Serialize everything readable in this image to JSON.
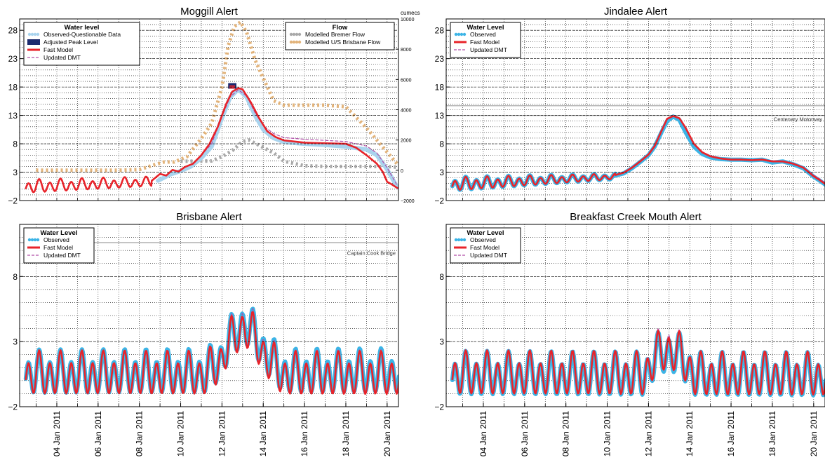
{
  "x_ticks": [
    "04 Jan 2011",
    "06 Jan 2011",
    "08 Jan 2011",
    "10 Jan 2011",
    "12 Jan 2011",
    "14 Jan 2011",
    "16 Jan 2011",
    "18 Jan 2011",
    "20 Jan 2011"
  ],
  "colors": {
    "observed": "#3cb4e6",
    "observed_questionable": "#a9d4ee",
    "fast_model": "#e8232a",
    "updated_dmt": "#b04ea8",
    "peak": "#1c2a6e",
    "bremer": "#a8a8a8",
    "brisbane_flow": "#e2b37a"
  },
  "chart_data": [
    {
      "id": "moggill",
      "type": "line",
      "title": "Moggill Alert",
      "y_ticks": [
        -2,
        3,
        8,
        13,
        18,
        23,
        28
      ],
      "ylim": [
        -2,
        30
      ],
      "y2_label": "cumecs",
      "y2_ticks": [
        -2000,
        0,
        2000,
        4000,
        6000,
        8000,
        10000
      ],
      "y2lim": [
        -2000,
        10000
      ],
      "grid": true,
      "legends": [
        {
          "title": "Water level",
          "position": "top-left",
          "items": [
            {
              "label": "Observed-Questionable Data",
              "style": "dots",
              "color_key": "observed_questionable"
            },
            {
              "label": "Adjusted Peak Level",
              "style": "bar",
              "color_key": "peak"
            },
            {
              "label": "Fast Model",
              "style": "solid",
              "color_key": "fast_model"
            },
            {
              "label": "Updated DMT",
              "style": "dashed",
              "color_key": "updated_dmt"
            }
          ]
        },
        {
          "title": "Flow",
          "position": "top-right",
          "items": [
            {
              "label": "Modelled Bremer Flow",
              "style": "dots",
              "color_key": "bremer"
            },
            {
              "label": "Modelled U/S Brisbane Flow",
              "style": "dots",
              "color_key": "brisbane_flow"
            }
          ]
        }
      ],
      "peak": {
        "x": [
          12.3,
          12.7
        ],
        "y": 18.2
      },
      "series": [
        {
          "name": "Modelled U/S Brisbane Flow",
          "axis": "right",
          "color_key": "brisbane_flow",
          "style": "dots",
          "x": [
            3,
            4,
            5,
            6,
            7,
            8,
            8.7,
            9.2,
            9.7,
            10.3,
            11,
            11.5,
            12,
            12.3,
            12.6,
            12.9,
            13.2,
            13.6,
            14,
            14.5,
            15,
            16,
            17,
            18,
            19,
            20,
            20.5
          ],
          "y": [
            0,
            0,
            0,
            0,
            0,
            50,
            350,
            550,
            550,
            900,
            2100,
            3100,
            5500,
            8200,
            9500,
            9800,
            9100,
            7300,
            6100,
            4600,
            4300,
            4300,
            4300,
            4200,
            2800,
            1200,
            400
          ]
        },
        {
          "name": "Modelled Bremer Flow",
          "axis": "right",
          "color_key": "bremer",
          "style": "dots",
          "x": [
            10,
            10.8,
            11.5,
            12,
            12.5,
            13,
            13.3,
            13.8,
            14.5,
            15,
            16,
            17,
            18,
            19,
            20,
            20.5
          ],
          "y": [
            600,
            600,
            620,
            900,
            1300,
            1900,
            2000,
            1650,
            1150,
            600,
            300,
            250,
            250,
            250,
            250,
            200
          ]
        },
        {
          "name": "Observed-Questionable Data",
          "axis": "left",
          "color_key": "observed_questionable",
          "style": "thick",
          "x": [
            8.9,
            9.5,
            10,
            10.5,
            11,
            11.5,
            12,
            12.4,
            12.8,
            13.2,
            13.6,
            14,
            14.5,
            15,
            16,
            17,
            18,
            19,
            19.5,
            20,
            20.5
          ],
          "y": [
            1.5,
            2.6,
            3.2,
            4,
            5.5,
            7.5,
            12.5,
            16.2,
            17.6,
            16.2,
            13,
            10.5,
            9,
            8.3,
            8,
            7.8,
            7.5,
            7,
            6,
            3.5,
            0.3
          ]
        },
        {
          "name": "Updated DMT",
          "axis": "left",
          "color_key": "updated_dmt",
          "style": "dashed",
          "x": [
            11,
            11.5,
            12,
            12.4,
            12.8,
            13.2,
            13.6,
            14,
            14.5,
            15,
            16,
            17,
            18,
            19,
            19.5,
            20,
            20.5
          ],
          "y": [
            6,
            8,
            12.8,
            16.3,
            17.5,
            16.4,
            13.5,
            11.2,
            9.8,
            9.1,
            8.8,
            8.6,
            8.4,
            7.6,
            6.4,
            3.8,
            0.6
          ]
        },
        {
          "name": "Fast Model",
          "axis": "left",
          "color_key": "fast_model",
          "style": "solid",
          "wave": {
            "x0": 2.5,
            "x1": 8.6,
            "amp0": 1.0,
            "amp1": 0.7,
            "base0": 0.4,
            "base1": 1.3
          },
          "x": [
            8.6,
            9,
            9.3,
            9.6,
            9.9,
            10.2,
            10.6,
            11,
            11.4,
            11.8,
            12.2,
            12.5,
            12.8,
            13,
            13.4,
            13.8,
            14.2,
            14.6,
            15,
            16,
            17,
            18,
            18.5,
            19,
            19.5,
            19.8,
            20,
            20.2,
            20.5
          ],
          "y": [
            1.5,
            2.7,
            2.4,
            3.4,
            3.1,
            3.9,
            4.5,
            6,
            8,
            11,
            15,
            17.2,
            17.8,
            17.6,
            15.3,
            12.5,
            10.2,
            9.2,
            8.6,
            8.2,
            8.1,
            8,
            7.3,
            6,
            4.5,
            3,
            1.3,
            0.9,
            0.2
          ]
        }
      ]
    },
    {
      "id": "jindalee",
      "type": "line",
      "title": "Jindalee Alert",
      "y_ticks": [
        -2,
        3,
        8,
        13,
        18,
        23,
        28
      ],
      "ylim": [
        -2,
        30
      ],
      "grid": true,
      "annotation": {
        "text": "Centenary Motorway",
        "y": 13
      },
      "hlines": [
        13,
        14.7
      ],
      "legends": [
        {
          "title": "Water Level",
          "position": "top-left",
          "items": [
            {
              "label": "Observed",
              "style": "dots",
              "color_key": "observed"
            },
            {
              "label": "Fast Model",
              "style": "solid",
              "color_key": "fast_model"
            },
            {
              "label": "Updated DMT",
              "style": "dashed",
              "color_key": "updated_dmt"
            }
          ]
        }
      ],
      "series": [
        {
          "name": "Observed",
          "color_key": "observed",
          "style": "thick",
          "wave": {
            "x0": 2.5,
            "x1": 10.4,
            "amp0": 1.0,
            "amp1": 0.4,
            "base0": 0.8,
            "base1": 2.2
          },
          "x": [
            10.4,
            10.8,
            11.2,
            11.6,
            12,
            12.3,
            12.6,
            12.9,
            13.2,
            13.5,
            13.8,
            14.2,
            14.6,
            15,
            15.5,
            16,
            16.5,
            17,
            17.5,
            18,
            18.5,
            19,
            19.5,
            20,
            20.3,
            20.6
          ],
          "y": [
            2.4,
            2.8,
            3.7,
            4.8,
            6,
            7.5,
            9.8,
            12,
            12.8,
            12.2,
            10,
            7.5,
            6.2,
            5.6,
            5.3,
            5.2,
            5.2,
            5.1,
            5.2,
            4.7,
            4.9,
            4.4,
            3.7,
            2.2,
            1.5,
            0.7
          ]
        },
        {
          "name": "Updated DMT",
          "color_key": "updated_dmt",
          "style": "dashed",
          "x": [
            10.4,
            10.8,
            11.2,
            11.6,
            12,
            12.3,
            12.6,
            12.9,
            13.2,
            13.5,
            13.8,
            14.2,
            14.6,
            15,
            15.5,
            16,
            16.5,
            17,
            17.5,
            18,
            18.5,
            19,
            19.5,
            20,
            20.3,
            20.6
          ],
          "y": [
            2.5,
            3,
            3.9,
            5,
            6.2,
            7.8,
            10.2,
            12.5,
            12.9,
            12.4,
            10.6,
            8,
            6.6,
            5.9,
            5.5,
            5.3,
            5.3,
            5.2,
            5.3,
            5,
            5,
            4.6,
            3.9,
            2.5,
            1.8,
            1
          ]
        },
        {
          "name": "Fast Model",
          "color_key": "fast_model",
          "style": "solid",
          "wave": {
            "x0": 2.5,
            "x1": 10.4,
            "amp0": 1.0,
            "amp1": 0.4,
            "base0": 0.8,
            "base1": 2.2
          },
          "x": [
            10.4,
            10.8,
            11.2,
            11.6,
            12,
            12.3,
            12.6,
            12.9,
            13.2,
            13.5,
            13.8,
            14.2,
            14.6,
            15,
            15.5,
            16,
            16.5,
            17,
            17.5,
            18,
            18.5,
            19,
            19.5,
            20,
            20.3,
            20.6
          ],
          "y": [
            2.5,
            2.9,
            3.8,
            4.9,
            6.1,
            7.6,
            10,
            12.4,
            12.9,
            12.5,
            10.8,
            8,
            6.5,
            5.8,
            5.4,
            5.2,
            5.2,
            5.1,
            5.2,
            4.9,
            4.9,
            4.5,
            3.8,
            2.3,
            1.6,
            0.8
          ]
        }
      ]
    },
    {
      "id": "brisbane",
      "type": "line",
      "title": "Brisbane Alert",
      "y_ticks": [
        -2,
        3,
        8
      ],
      "ylim": [
        -2,
        12
      ],
      "grid": true,
      "annotation": {
        "text": "Captain Cook Bridge",
        "y": 10.1
      },
      "hlines": [
        10.6
      ],
      "legends": [
        {
          "title": "Water Level",
          "position": "top-left",
          "items": [
            {
              "label": "Observed",
              "style": "dots",
              "color_key": "observed"
            },
            {
              "label": "Fast Model",
              "style": "solid",
              "color_key": "fast_model"
            },
            {
              "label": "Updated DMT",
              "style": "dashed",
              "color_key": "updated_dmt"
            }
          ]
        }
      ],
      "series": [
        {
          "name": "Observed",
          "color_key": "observed",
          "style": "thick",
          "wave": {
            "x0": 2.5,
            "x1": 20.6,
            "amp0": 1.4,
            "amp1": 1.4,
            "base0": 0.5,
            "base1": 0.6
          },
          "bump": {
            "x": [
              11.2,
              11.7,
              12,
              12.3,
              12.6,
              12.9,
              13.1,
              13.4,
              13.7,
              14,
              14.3,
              14.6,
              15
            ],
            "y": [
              0.6,
              1.3,
              1.8,
              3,
              3.5,
              4.2,
              4.4,
              3.9,
              3.2,
              2.4,
              1.8,
              1.2,
              0.6
            ]
          }
        },
        {
          "name": "Updated DMT",
          "color_key": "updated_dmt",
          "style": "dashed",
          "wave": {
            "x0": 2.5,
            "x1": 20.6,
            "amp0": 1.4,
            "amp1": 1.4,
            "base0": 0.45,
            "base1": 0.5
          },
          "bump": {
            "x": [
              11.2,
              11.7,
              12,
              12.3,
              12.6,
              12.9,
              13.1,
              13.4,
              13.7,
              14,
              14.3,
              14.6,
              15
            ],
            "y": [
              0.6,
              1.3,
              1.8,
              3.1,
              3.6,
              4.3,
              4.5,
              4,
              3.3,
              2.4,
              1.8,
              1.2,
              0.6
            ]
          }
        },
        {
          "name": "Fast Model",
          "color_key": "fast_model",
          "style": "solid",
          "wave": {
            "x0": 2.5,
            "x1": 20.6,
            "amp0": 1.4,
            "amp1": 1.4,
            "base0": 0.45,
            "base1": 0.4
          },
          "bump": {
            "x": [
              11.2,
              11.7,
              12,
              12.3,
              12.6,
              12.9,
              13.1,
              13.4,
              13.7,
              14,
              14.3,
              14.6,
              15
            ],
            "y": [
              0.6,
              1.3,
              1.8,
              3,
              3.5,
              4.1,
              4.3,
              3.8,
              3.1,
              2.3,
              1.7,
              1.1,
              0.5
            ]
          }
        }
      ]
    },
    {
      "id": "breakfast",
      "type": "line",
      "title": "Breakfast Creek Mouth Alert",
      "y_ticks": [
        -2,
        3,
        8
      ],
      "ylim": [
        -2,
        12
      ],
      "grid": true,
      "legends": [
        {
          "title": "Water Level",
          "position": "top-left",
          "items": [
            {
              "label": "Observed",
              "style": "dots",
              "color_key": "observed"
            },
            {
              "label": "Fast Model",
              "style": "solid",
              "color_key": "fast_model"
            },
            {
              "label": "Updated DMT",
              "style": "dashed",
              "color_key": "updated_dmt"
            }
          ]
        }
      ],
      "series": [
        {
          "name": "Observed",
          "color_key": "observed",
          "style": "thick",
          "wave": {
            "x0": 2.5,
            "x1": 20.6,
            "amp0": 1.4,
            "amp1": 1.4,
            "base0": 0.4,
            "base1": 0.3
          },
          "bump": {
            "x": [
              11.8,
              12.2,
              12.6,
              13,
              13.4,
              13.8,
              14.2
            ],
            "y": [
              0.4,
              1.5,
              2.1,
              2.3,
              2.0,
              1.4,
              0.6
            ]
          }
        },
        {
          "name": "Updated DMT",
          "color_key": "updated_dmt",
          "style": "dashed",
          "wave": {
            "x0": 2.5,
            "x1": 20.6,
            "amp0": 1.4,
            "amp1": 1.4,
            "base0": 0.5,
            "base1": 0.4
          },
          "bump": {
            "x": [
              11.8,
              12.2,
              12.6,
              13,
              13.4,
              13.8,
              14.2
            ],
            "y": [
              0.6,
              1.8,
              2.5,
              2.8,
              2.4,
              1.6,
              0.7
            ]
          }
        },
        {
          "name": "Fast Model",
          "color_key": "fast_model",
          "style": "solid",
          "wave": {
            "x0": 2.5,
            "x1": 20.6,
            "amp0": 1.4,
            "amp1": 1.4,
            "base0": 0.45,
            "base1": 0.35
          },
          "bump": {
            "x": [
              11.8,
              12.2,
              12.6,
              13,
              13.4,
              13.8,
              14.2
            ],
            "y": [
              0.5,
              1.6,
              2.3,
              2.5,
              2.2,
              1.5,
              0.6
            ]
          }
        }
      ]
    }
  ]
}
